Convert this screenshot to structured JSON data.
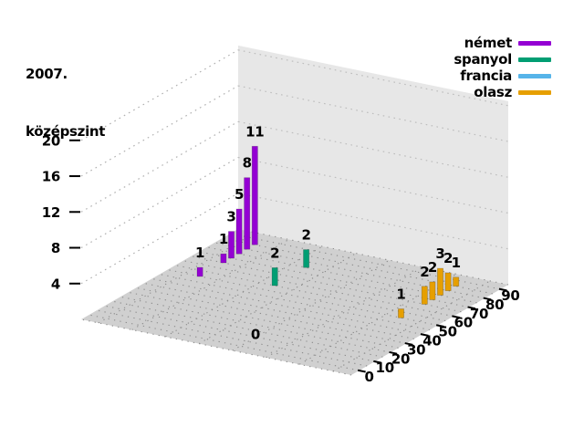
{
  "title": {
    "line1": "2007.",
    "line2": "középszint"
  },
  "legend": {
    "position": "top-right"
  },
  "chart_data": {
    "type": "bar3d",
    "title": "2007. középszint",
    "x_axis": {
      "range": [
        -5,
        95
      ],
      "tick_min": 0,
      "tick_max": 90,
      "tick_step": 10,
      "tick_labels": [
        "0",
        "10",
        "20",
        "30",
        "40",
        "50",
        "60",
        "70",
        "80",
        "90"
      ]
    },
    "z_axis": {
      "range": [
        0,
        20.5
      ],
      "ticks": [
        4,
        8,
        12,
        16,
        20
      ]
    },
    "depth_axis": {
      "rows_front_to_back": [
        "olasz",
        "francia",
        "spanyol",
        "német"
      ]
    },
    "series": [
      {
        "name": "német",
        "color": "#9400d3",
        "row": 3,
        "points": [
          {
            "x": 50,
            "value": 1
          },
          {
            "x": 65,
            "value": 1
          },
          {
            "x": 70,
            "value": 3
          },
          {
            "x": 75,
            "value": 5
          },
          {
            "x": 80,
            "value": 8
          },
          {
            "x": 85,
            "value": 11
          }
        ]
      },
      {
        "name": "spanyol",
        "color": "#009e73",
        "row": 2,
        "points": [
          {
            "x": 55,
            "value": 2
          },
          {
            "x": 75,
            "value": 2
          }
        ]
      },
      {
        "name": "francia",
        "color": "#56b4e9",
        "row": 1,
        "points": [
          {
            "x": 0,
            "value": 0
          }
        ]
      },
      {
        "name": "olasz",
        "color": "#e69f00",
        "row": 0,
        "points": [
          {
            "x": 50,
            "value": 1
          },
          {
            "x": 65,
            "value": 2
          },
          {
            "x": 70,
            "value": 2
          },
          {
            "x": 75,
            "value": 3
          },
          {
            "x": 80,
            "value": 2
          },
          {
            "x": 85,
            "value": 1
          }
        ]
      }
    ],
    "palette": {
      "background": "#ffffff",
      "floor": "#d0d0d0",
      "wall": "#e7e7e7",
      "floor_grid": "#8d8d8d",
      "wall_grid": "#bdbdbd",
      "leftwall_grid": "#b0b0b0",
      "tick": "#000000"
    },
    "grid": {
      "floor_dotted": true,
      "walls_dotted": true,
      "legend_position": "top-right"
    }
  }
}
